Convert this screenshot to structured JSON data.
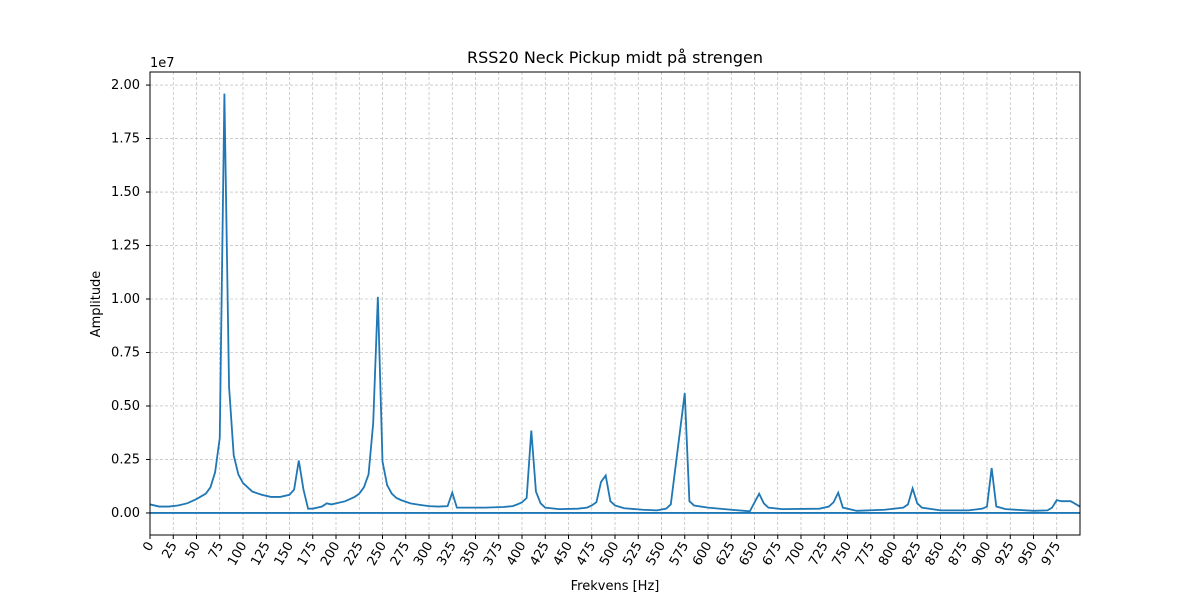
{
  "chart_data": {
    "type": "line",
    "title": "RSS20 Neck Pickup midt på strengen",
    "x_label": "Frekvens [Hz]",
    "y_label": "Amplitude",
    "y_offset_label": "1e7",
    "grid": true,
    "xlim": [
      0,
      1000
    ],
    "ylim": [
      -0.103,
      2.061
    ],
    "xticks": [
      0,
      25,
      50,
      75,
      100,
      125,
      150,
      175,
      200,
      225,
      250,
      275,
      300,
      325,
      350,
      375,
      400,
      425,
      450,
      475,
      500,
      525,
      550,
      575,
      600,
      625,
      650,
      675,
      700,
      725,
      750,
      775,
      800,
      825,
      850,
      875,
      900,
      925,
      950,
      975
    ],
    "yticks": [
      {
        "value": 0,
        "label": "0.00"
      },
      0.25,
      {
        "value": 0.5,
        "label": "0.50"
      },
      0.75,
      {
        "value": 1,
        "label": "1.00"
      },
      1.25,
      {
        "value": 1.5,
        "label": "1.50"
      },
      1.75,
      {
        "value": 2,
        "label": "2.00"
      }
    ],
    "series": [
      {
        "color": "#1f77b4",
        "x": [
          0,
          10,
          20,
          30,
          40,
          50,
          60,
          65,
          70,
          75,
          80,
          85,
          90,
          95,
          100,
          105,
          110,
          120,
          130,
          140,
          150,
          155,
          160,
          165,
          170,
          175,
          180,
          185,
          190,
          195,
          200,
          210,
          220,
          225,
          230,
          235,
          240,
          245,
          250,
          255,
          260,
          265,
          270,
          280,
          290,
          300,
          310,
          320,
          325,
          330,
          340,
          360,
          380,
          390,
          395,
          400,
          405,
          410,
          415,
          420,
          425,
          440,
          460,
          470,
          475,
          480,
          485,
          490,
          495,
          500,
          510,
          530,
          545,
          555,
          560,
          575,
          580,
          585,
          600,
          625,
          645,
          655,
          660,
          665,
          680,
          720,
          730,
          735,
          740,
          745,
          760,
          790,
          810,
          815,
          820,
          825,
          830,
          850,
          880,
          895,
          900,
          905,
          910,
          920,
          950,
          965,
          970,
          975,
          980,
          990,
          1000
        ],
        "values": [
          0.04,
          0.03,
          0.03,
          0.035,
          0.045,
          0.065,
          0.09,
          0.12,
          0.19,
          0.35,
          1.96,
          0.59,
          0.27,
          0.18,
          0.14,
          0.12,
          0.1,
          0.085,
          0.075,
          0.075,
          0.085,
          0.11,
          0.245,
          0.11,
          0.02,
          0.02,
          0.025,
          0.03,
          0.045,
          0.04,
          0.045,
          0.055,
          0.075,
          0.09,
          0.12,
          0.18,
          0.42,
          1.01,
          0.24,
          0.13,
          0.09,
          0.07,
          0.06,
          0.045,
          0.038,
          0.032,
          0.03,
          0.032,
          0.095,
          0.025,
          0.025,
          0.025,
          0.028,
          0.032,
          0.04,
          0.05,
          0.07,
          0.385,
          0.1,
          0.045,
          0.025,
          0.018,
          0.02,
          0.025,
          0.035,
          0.05,
          0.145,
          0.175,
          0.055,
          0.035,
          0.022,
          0.015,
          0.012,
          0.02,
          0.04,
          0.56,
          0.055,
          0.035,
          0.025,
          0.015,
          0.008,
          0.09,
          0.045,
          0.025,
          0.018,
          0.02,
          0.03,
          0.05,
          0.095,
          0.025,
          0.01,
          0.015,
          0.025,
          0.04,
          0.115,
          0.045,
          0.025,
          0.012,
          0.012,
          0.02,
          0.03,
          0.21,
          0.03,
          0.018,
          0.01,
          0.012,
          0.025,
          0.06,
          0.055,
          0.055,
          0.03
        ]
      },
      {
        "color": "#1f77b4",
        "x": [
          0,
          1000
        ],
        "values": [
          0,
          0
        ]
      }
    ]
  }
}
